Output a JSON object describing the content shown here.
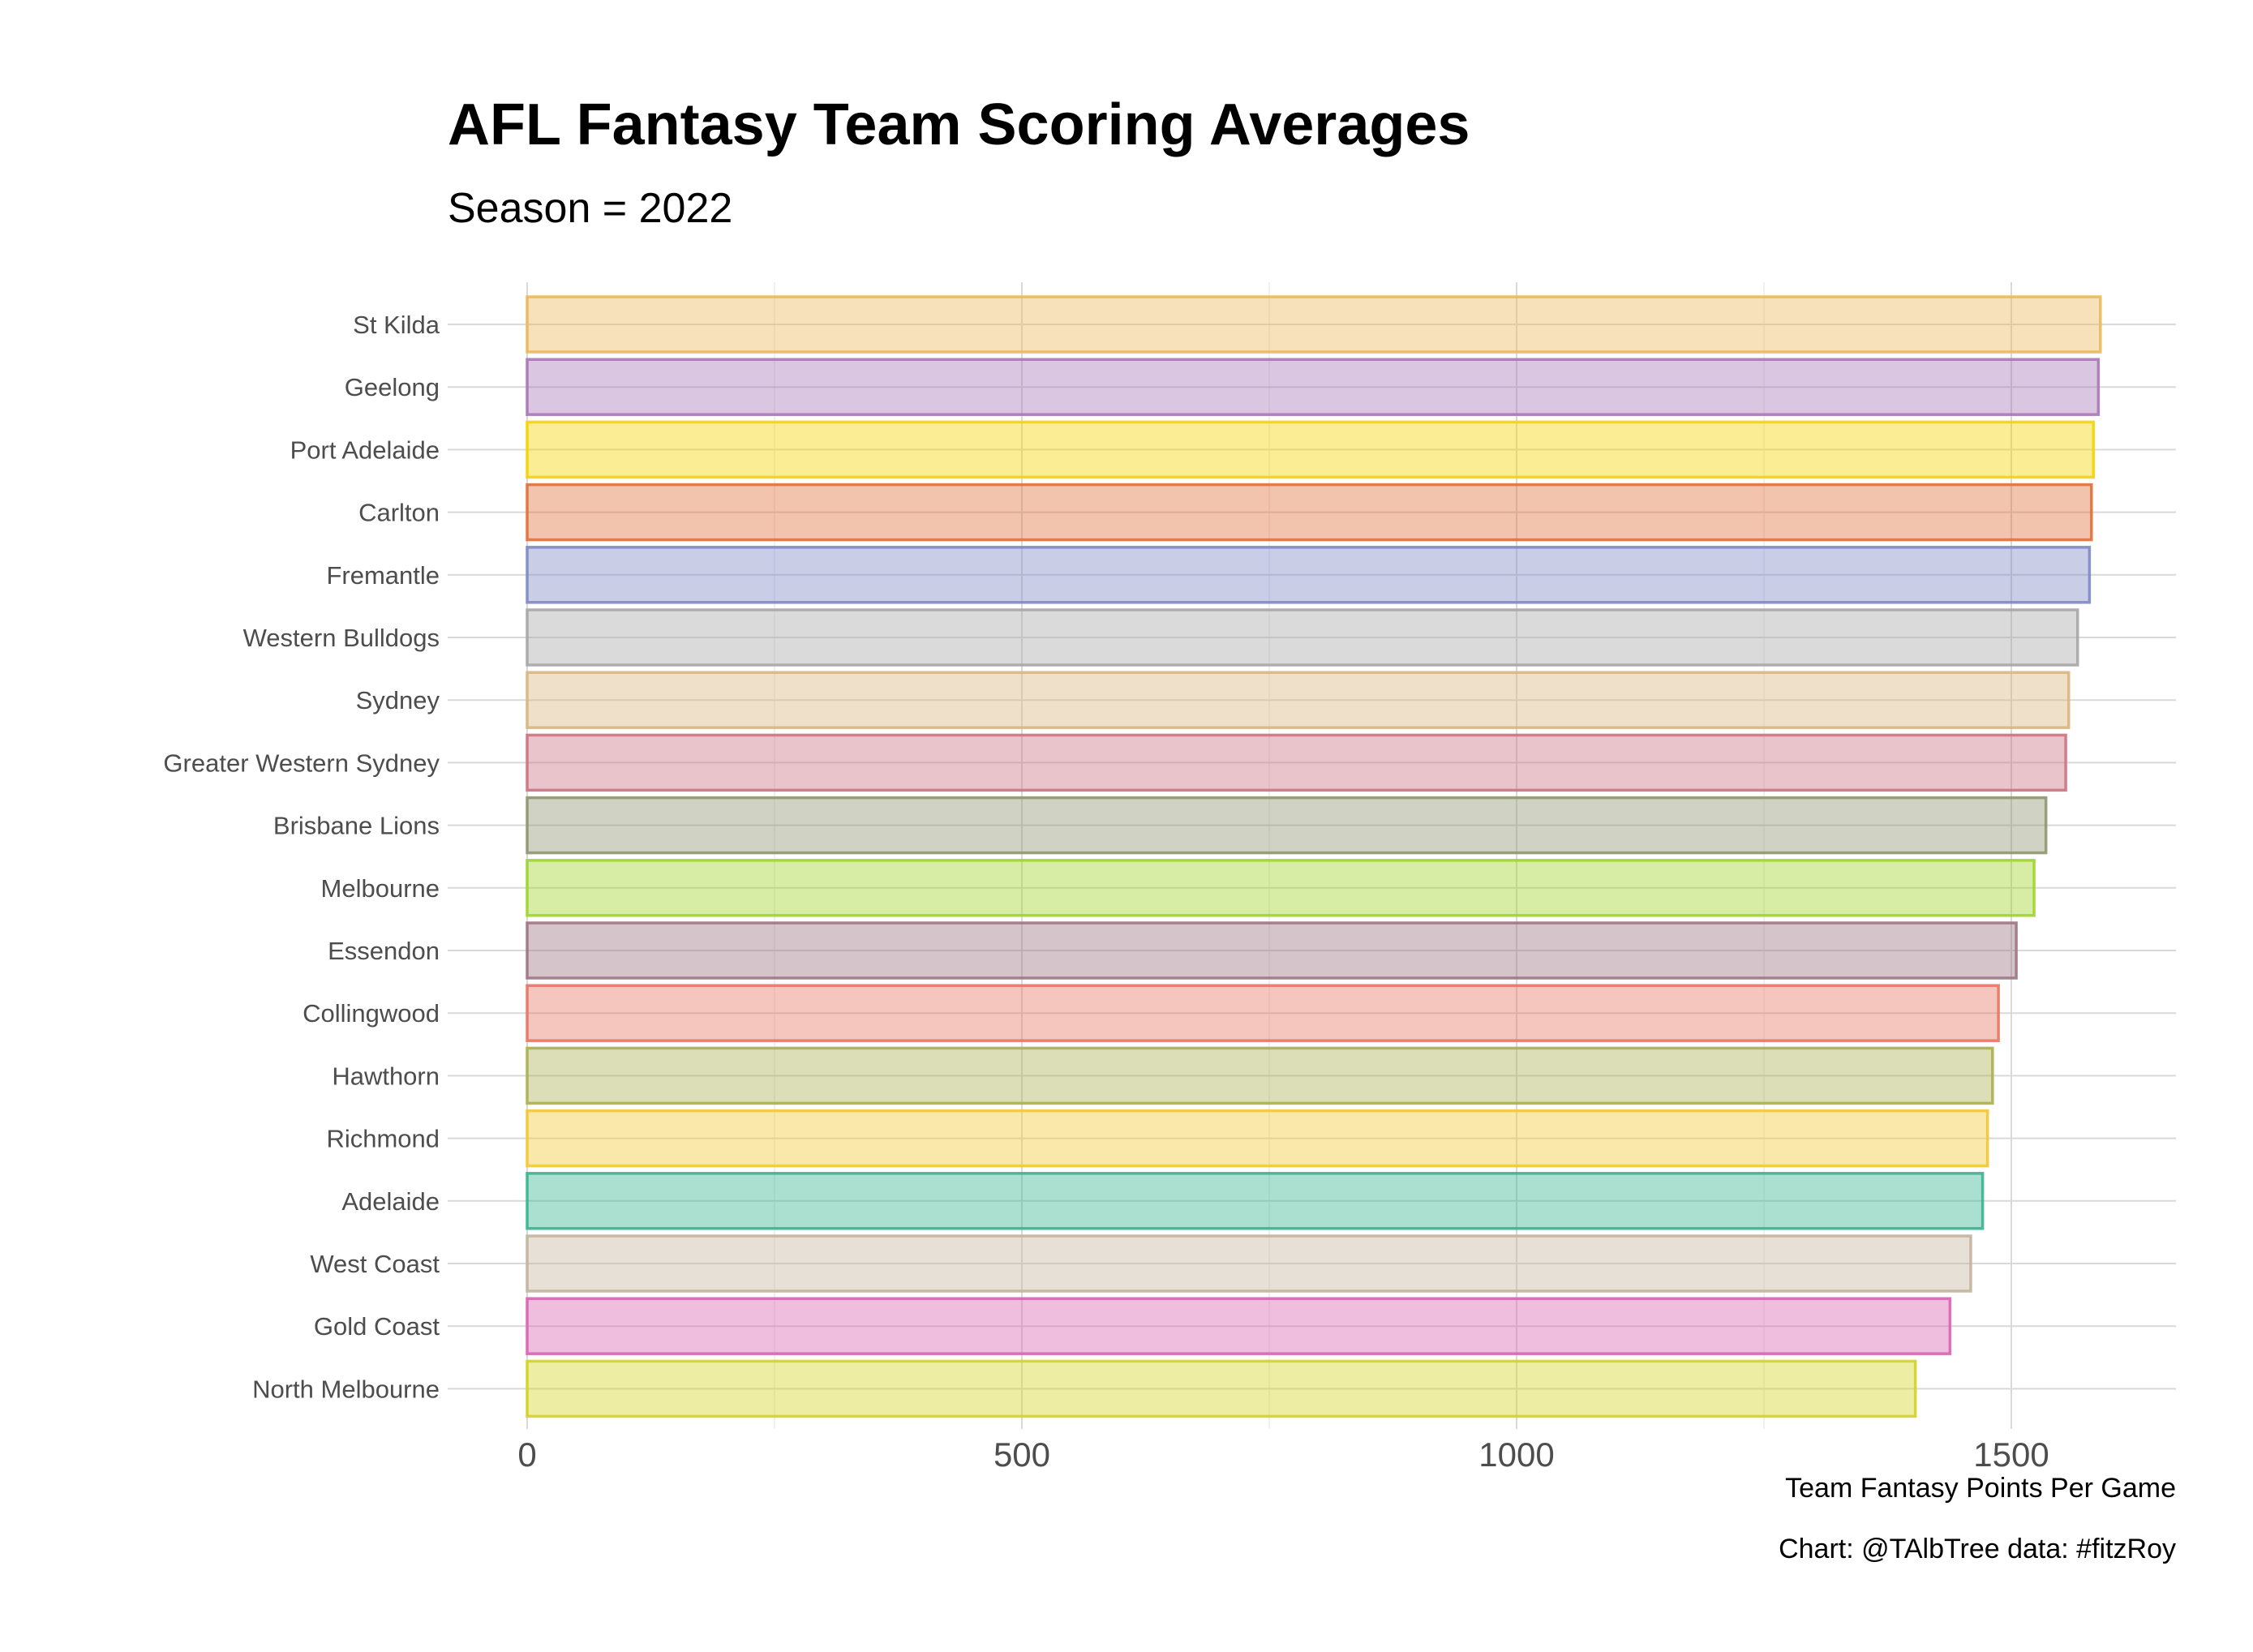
{
  "chart_data": {
    "type": "bar",
    "orientation": "horizontal",
    "title": "AFL Fantasy Team Scoring Averages",
    "subtitle": "Season = 2022",
    "xlabel": "Team Fantasy Points Per Game",
    "ylabel": "",
    "caption": "Chart: @TAlbTree data: #fitzRoy",
    "xlim": [
      0,
      1660
    ],
    "x_ticks": [
      0,
      500,
      1000,
      1500
    ],
    "x_tick_labels": [
      "0",
      "500",
      "1000",
      "1500"
    ],
    "grid": true,
    "legend": "none",
    "categories": [
      "St Kilda",
      "Geelong",
      "Port Adelaide",
      "Carlton",
      "Fremantle",
      "Western Bulldogs",
      "Sydney",
      "Greater Western Sydney",
      "Brisbane Lions",
      "Melbourne",
      "Essendon",
      "Collingwood",
      "Hawthorn",
      "Richmond",
      "Adelaide",
      "West Coast",
      "Gold Coast",
      "North Melbourne"
    ],
    "values": [
      1590,
      1588,
      1583,
      1581,
      1579,
      1567,
      1558,
      1555,
      1535,
      1523,
      1505,
      1487,
      1481,
      1476,
      1471,
      1459,
      1438,
      1403
    ],
    "colors": [
      "#e9b85c",
      "#a877b7",
      "#f4d400",
      "#e06f3c",
      "#7e88c4",
      "#a6a6a6",
      "#d9b581",
      "#cc7282",
      "#8f9670",
      "#9fd42b",
      "#9c7582",
      "#e77663",
      "#a9b050",
      "#f3c735",
      "#37b48e",
      "#c3b49d",
      "#d863b0",
      "#d3d323"
    ]
  }
}
